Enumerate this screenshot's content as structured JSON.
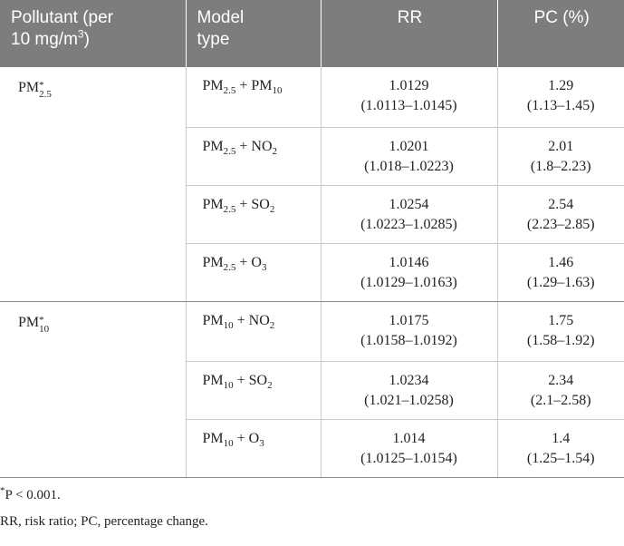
{
  "header": {
    "col1_line1": "Pollutant (per",
    "col1_line2": "10 mg/m",
    "col1_sup": "3",
    "col1_close": ")",
    "col2_line1": "Model",
    "col2_line2": "type",
    "col3": "RR",
    "col4": "PC (%)"
  },
  "groups": [
    {
      "pollutant": {
        "base": "PM",
        "sup": "*",
        "sub": "2.5"
      },
      "rows": [
        {
          "model_a": "PM",
          "model_a_sub": "2.5",
          "model_join": " + ",
          "model_b": "PM",
          "model_b_sub": "10",
          "model_b_tail": "",
          "rr": "1.0129",
          "rr_ci": "(1.0113–1.0145)",
          "pc": "1.29",
          "pc_ci": "(1.13–1.45)"
        },
        {
          "model_a": "PM",
          "model_a_sub": "2.5",
          "model_join": " + ",
          "model_b": "NO",
          "model_b_sub": "2",
          "model_b_tail": "",
          "rr": "1.0201",
          "rr_ci": "(1.018–1.0223)",
          "pc": "2.01",
          "pc_ci": "(1.8–2.23)"
        },
        {
          "model_a": "PM",
          "model_a_sub": "2.5",
          "model_join": " + ",
          "model_b": "SO",
          "model_b_sub": "2",
          "model_b_tail": "",
          "rr": "1.0254",
          "rr_ci": "(1.0223–1.0285)",
          "pc": "2.54",
          "pc_ci": "(2.23–2.85)"
        },
        {
          "model_a": "PM",
          "model_a_sub": "2.5",
          "model_join": " + ",
          "model_b": "O",
          "model_b_sub": "3",
          "model_b_tail": "",
          "rr": "1.0146",
          "rr_ci": "(1.0129–1.0163)",
          "pc": "1.46",
          "pc_ci": "(1.29–1.63)"
        }
      ]
    },
    {
      "pollutant": {
        "base": "PM",
        "sup": "*",
        "sub": "10"
      },
      "rows": [
        {
          "model_a": "PM",
          "model_a_sub": "10",
          "model_join": " + ",
          "model_b": "NO",
          "model_b_sub": "2",
          "model_b_tail": "",
          "rr": "1.0175",
          "rr_ci": "(1.0158–1.0192)",
          "pc": "1.75",
          "pc_ci": "(1.58–1.92)"
        },
        {
          "model_a": "PM",
          "model_a_sub": "10",
          "model_join": " + ",
          "model_b": "SO",
          "model_b_sub": "2",
          "model_b_tail": "",
          "rr": "1.0234",
          "rr_ci": "(1.021–1.0258)",
          "pc": "2.34",
          "pc_ci": "(2.1–2.58)"
        },
        {
          "model_a": "PM",
          "model_a_sub": "10",
          "model_join": " + ",
          "model_b": "O",
          "model_b_sub": "3",
          "model_b_tail": "",
          "rr": "1.014",
          "rr_ci": "(1.0125–1.0154)",
          "pc": "1.4",
          "pc_ci": "(1.25–1.54)"
        }
      ]
    }
  ],
  "notes": {
    "asterisk": "*",
    "significance": "P < 0.001.",
    "abbreviations": "RR, risk ratio; PC, percentage change."
  }
}
